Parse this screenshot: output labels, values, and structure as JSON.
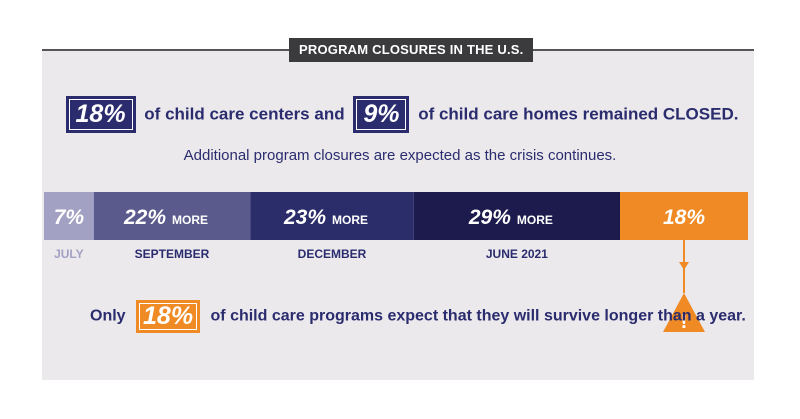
{
  "title": "PROGRAM CLOSURES IN THE U.S.",
  "headline": {
    "stat1": "18%",
    "text1": "of child care centers and",
    "stat2": "9%",
    "text2": "of child care homes remained CLOSED."
  },
  "subline": "Additional program closures are expected as the crisis continues.",
  "colors": {
    "navy": "#2a2c6e",
    "july": "#a3a1c3",
    "september": "#5b5a8c",
    "december": "#2b2d6b",
    "june": "#1d1b4d",
    "orange": "#f08a24"
  },
  "chart_data": {
    "type": "bar",
    "orientation": "horizontal-stacked",
    "segments": [
      {
        "label": "JULY",
        "value": 7,
        "value_label": "7%",
        "suffix": ""
      },
      {
        "label": "SEPTEMBER",
        "value": 22,
        "value_label": "22%",
        "suffix": "MORE"
      },
      {
        "label": "DECEMBER",
        "value": 23,
        "value_label": "23%",
        "suffix": "MORE"
      },
      {
        "label": "JUNE 2021",
        "value": 29,
        "value_label": "29%",
        "suffix": "MORE"
      },
      {
        "label": "",
        "value": 18,
        "value_label": "18%",
        "suffix": ""
      }
    ]
  },
  "bottom": {
    "text1": "Only",
    "stat": "18%",
    "text2": "of child care programs expect that they will survive longer than a year.",
    "warning_symbol": "!"
  }
}
